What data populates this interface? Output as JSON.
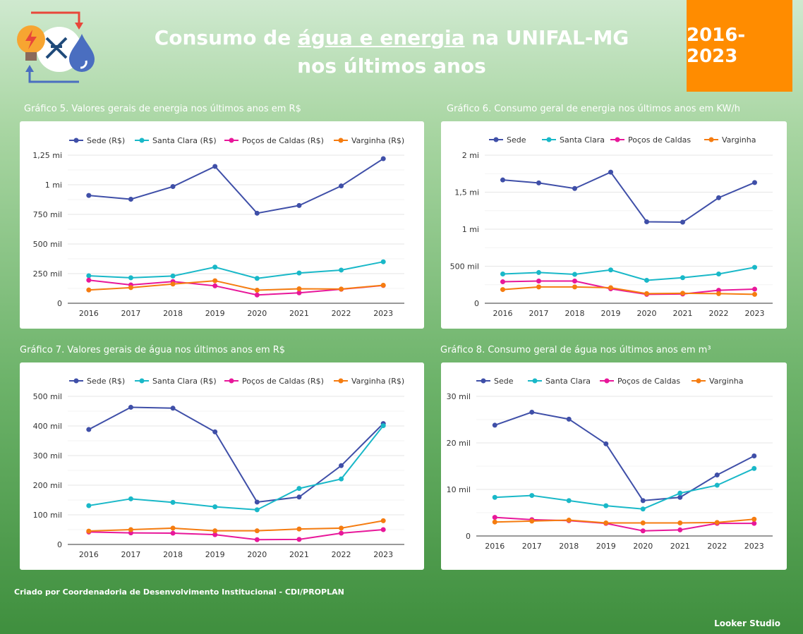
{
  "header": {
    "title_line1_pre": "Consumo de ",
    "title_line1_u": "água e energia",
    "title_line1_post": " na UNIFAL-MG",
    "title_line2": "nos últimos anos",
    "year_range": "2016-2023",
    "accent_color": "#ff8c00"
  },
  "icons": [
    "lightbulb-icon",
    "water-drop-icon",
    "refresh-arrows-icon"
  ],
  "footer": {
    "credit": "Criado por Coordenadoria de Desenvolvimento Institucional - CDI/PROPLAN",
    "brand": "Looker Studio"
  },
  "series_colors": [
    "#3f4fa8",
    "#19b8c8",
    "#e8179a",
    "#f57c10"
  ],
  "chart_data": [
    {
      "id": "chart5",
      "type": "line",
      "title": "Gráfico 5. Valores gerais de energia nos últimos anos em R$",
      "categories": [
        "2016",
        "2017",
        "2018",
        "2019",
        "2020",
        "2021",
        "2022",
        "2023"
      ],
      "ylim": [
        0,
        1250000
      ],
      "yticks": [
        0,
        250000,
        500000,
        750000,
        1000000,
        1250000
      ],
      "ytick_labels": [
        "0",
        "250 mil",
        "500 mil",
        "750 mil",
        "1 mi",
        "1,25 mi"
      ],
      "legend_position": "top",
      "grid": true,
      "series": [
        {
          "name": "Sede (R$)",
          "values": [
            910000,
            878000,
            985000,
            1155000,
            760000,
            825000,
            990000,
            1220000
          ]
        },
        {
          "name": "Santa Clara (R$)",
          "values": [
            232000,
            215000,
            230000,
            305000,
            210000,
            255000,
            280000,
            350000
          ]
        },
        {
          "name": "Poços de Caldas (R$)",
          "values": [
            195000,
            155000,
            183000,
            147000,
            70000,
            88000,
            118000,
            150000
          ]
        },
        {
          "name": "Varginha (R$)",
          "values": [
            112000,
            132000,
            162000,
            190000,
            110000,
            122000,
            120000,
            152000
          ]
        }
      ]
    },
    {
      "id": "chart6",
      "type": "line",
      "title": "Gráfico 6. Consumo geral de energia nos últimos anos em KW/h",
      "categories": [
        "2016",
        "2017",
        "2018",
        "2019",
        "2020",
        "2021",
        "2022",
        "2023"
      ],
      "ylim": [
        0,
        2000000
      ],
      "yticks": [
        0,
        500000,
        1000000,
        1500000,
        2000000
      ],
      "ytick_labels": [
        "0",
        "500 mil",
        "1 mi",
        "1,5 mi",
        "2 mi"
      ],
      "legend_position": "top",
      "grid": true,
      "series": [
        {
          "name": "Sede",
          "values": [
            1665000,
            1625000,
            1550000,
            1770000,
            1100000,
            1095000,
            1425000,
            1630000
          ]
        },
        {
          "name": "Santa Clara",
          "values": [
            395000,
            415000,
            390000,
            450000,
            310000,
            345000,
            395000,
            485000
          ]
        },
        {
          "name": "Poços de Caldas",
          "values": [
            290000,
            300000,
            300000,
            195000,
            120000,
            125000,
            175000,
            190000
          ]
        },
        {
          "name": "Varginha",
          "values": [
            185000,
            220000,
            220000,
            210000,
            130000,
            135000,
            130000,
            120000
          ]
        }
      ]
    },
    {
      "id": "chart7",
      "type": "line",
      "title": "Gráfico 7. Valores gerais de água nos últimos anos em R$",
      "categories": [
        "2016",
        "2017",
        "2018",
        "2019",
        "2020",
        "2021",
        "2022",
        "2023"
      ],
      "ylim": [
        0,
        500000
      ],
      "yticks": [
        0,
        100000,
        200000,
        300000,
        400000,
        500000
      ],
      "ytick_labels": [
        "0",
        "100 mil",
        "200 mil",
        "300 mil",
        "400 mil",
        "500 mil"
      ],
      "legend_position": "top",
      "grid": true,
      "series": [
        {
          "name": "Sede (R$)",
          "values": [
            388000,
            463000,
            460000,
            380000,
            143000,
            160000,
            266000,
            408000
          ]
        },
        {
          "name": "Santa Clara (R$)",
          "values": [
            131000,
            154000,
            142000,
            127000,
            117000,
            189000,
            221000,
            401000
          ]
        },
        {
          "name": "Poços de Caldas (R$)",
          "values": [
            42000,
            39000,
            38000,
            33000,
            16000,
            17000,
            38000,
            50000
          ]
        },
        {
          "name": "Varginha (R$)",
          "values": [
            45000,
            50000,
            55000,
            46000,
            46000,
            52000,
            55000,
            80000
          ]
        }
      ]
    },
    {
      "id": "chart8",
      "type": "line",
      "title": "Gráfico 8. Consumo geral de água nos últimos anos em m³",
      "categories": [
        "2016",
        "2017",
        "2018",
        "2019",
        "2020",
        "2021",
        "2022",
        "2023"
      ],
      "ylim": [
        0,
        30000
      ],
      "yticks": [
        0,
        10000,
        20000,
        30000
      ],
      "ytick_labels": [
        "0",
        "10 mil",
        "20 mil",
        "30 mil"
      ],
      "legend_position": "top",
      "grid": true,
      "series": [
        {
          "name": "Sede",
          "values": [
            23800,
            26600,
            25100,
            19800,
            7600,
            8300,
            13100,
            17200
          ]
        },
        {
          "name": "Santa Clara",
          "values": [
            8300,
            8700,
            7600,
            6500,
            5800,
            9200,
            10900,
            14500
          ]
        },
        {
          "name": "Poços de Caldas",
          "values": [
            4000,
            3500,
            3300,
            2700,
            1100,
            1300,
            2700,
            2700
          ]
        },
        {
          "name": "Varginha",
          "values": [
            3000,
            3200,
            3400,
            2800,
            2800,
            2800,
            2900,
            3600
          ]
        }
      ]
    }
  ]
}
